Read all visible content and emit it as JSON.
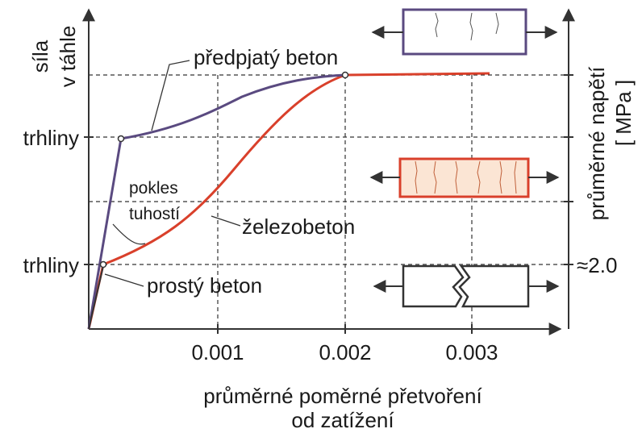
{
  "left_axis": {
    "label_lines": [
      "síla",
      "v táhle"
    ],
    "levels": [
      "trhliny",
      "trhliny"
    ]
  },
  "right_axis": {
    "label_lines": [
      "průměrné napětí",
      "[ MPa ]"
    ],
    "level_label": "≈2.0"
  },
  "x_axis": {
    "ticks": [
      "0.001",
      "0.002",
      "0.003"
    ],
    "title_lines": [
      "průměrné poměrné přetvoření",
      "od zatížení"
    ]
  },
  "curves": {
    "prestressed": "předpjatý  beton",
    "reinforced": "železobeton",
    "plain": "prostý beton",
    "stiffness_drop": [
      "pokles",
      "tuhostí"
    ]
  }
}
